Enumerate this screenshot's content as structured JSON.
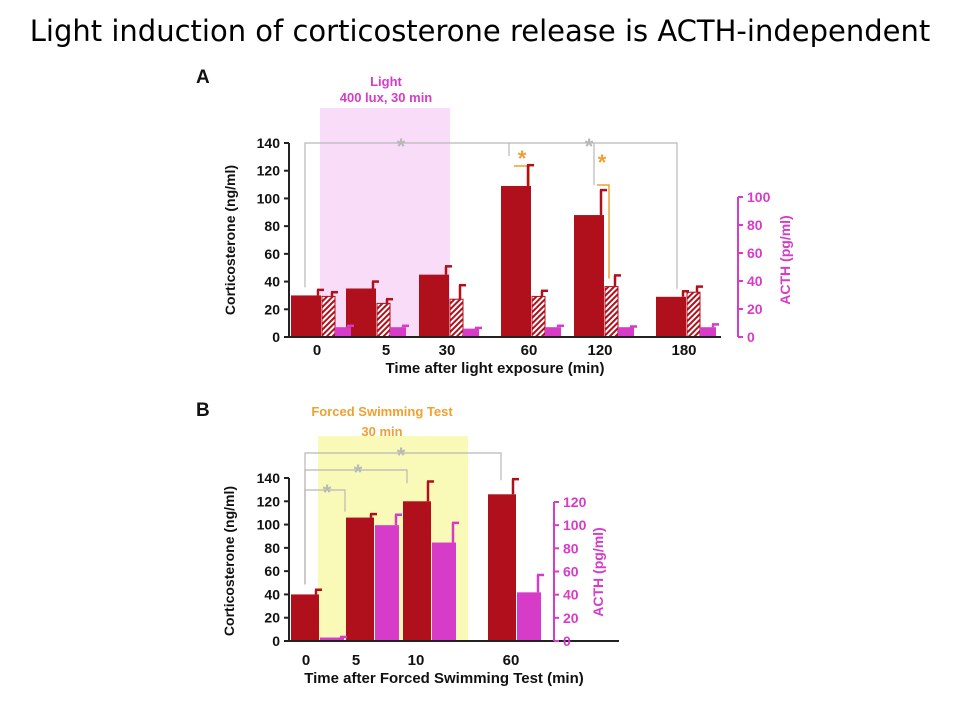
{
  "slide_title": "Light induction of corticosterone release is ACTH-independent",
  "colors": {
    "cort": "#b0101c",
    "acth": "#d63cc8",
    "acth_axis": "#d63cc8",
    "light_shade": "#f9dcf7",
    "fst_shade": "#fafab8",
    "sig_gray": "#b8b8b8",
    "sig_orange": "#f0a030"
  },
  "chart_data": [
    {
      "panel_label": "A",
      "type": "bar",
      "shade_label_line1": "Light",
      "shade_label_line2": "400 lux, 30 min",
      "xlabel": "Time after light exposure (min)",
      "ylabel_left": "Corticosterone (ng/ml)",
      "ylabel_right": "ACTH (pg/ml)",
      "ylim_left": [
        0,
        140
      ],
      "ylim_right": [
        0,
        100
      ],
      "left_ticks": [
        "0",
        "20",
        "40",
        "60",
        "80",
        "100",
        "120",
        "140"
      ],
      "right_ticks": [
        "0",
        "20",
        "40",
        "60",
        "80",
        "100"
      ],
      "categories": [
        "0",
        "5",
        "30",
        "60",
        "120",
        "180"
      ],
      "series": [
        {
          "values": [
            30,
            35,
            45,
            109,
            88,
            29
          ],
          "errors": [
            4,
            5,
            6,
            15,
            18,
            4
          ]
        },
        {
          "values": [
            29,
            24,
            27,
            29,
            36,
            32
          ],
          "errors": [
            3,
            3,
            10,
            4,
            8,
            4
          ]
        },
        {
          "values": [
            7,
            7,
            6,
            7,
            7,
            7
          ],
          "errors": [
            1,
            1,
            0.5,
            1,
            0.5,
            2
          ]
        }
      ],
      "significance_marks": [
        "*",
        "*",
        "*",
        "*"
      ]
    },
    {
      "panel_label": "B",
      "type": "bar",
      "shade_label_line1": "Forced Swimming Test",
      "shade_label_line2": "30 min",
      "xlabel": "Time after Forced Swimming Test (min)",
      "ylabel_left": "Corticosterone (ng/ml)",
      "ylabel_right": "ACTH (pg/ml)",
      "ylim_left": [
        0,
        140
      ],
      "ylim_right": [
        0,
        120
      ],
      "left_ticks": [
        "0",
        "20",
        "40",
        "60",
        "80",
        "100",
        "120",
        "140"
      ],
      "right_ticks": [
        "0",
        "20",
        "40",
        "60",
        "80",
        "100",
        "120"
      ],
      "categories": [
        "0",
        "5",
        "10",
        "60"
      ],
      "series": [
        {
          "values": [
            40,
            106,
            120,
            126
          ],
          "errors": [
            4,
            3,
            17,
            13
          ]
        },
        {
          "values": [
            3,
            100,
            85,
            42
          ],
          "errors": [
            0.5,
            9,
            17,
            15
          ]
        }
      ],
      "significance_marks": [
        "*",
        "*",
        "*"
      ]
    }
  ]
}
